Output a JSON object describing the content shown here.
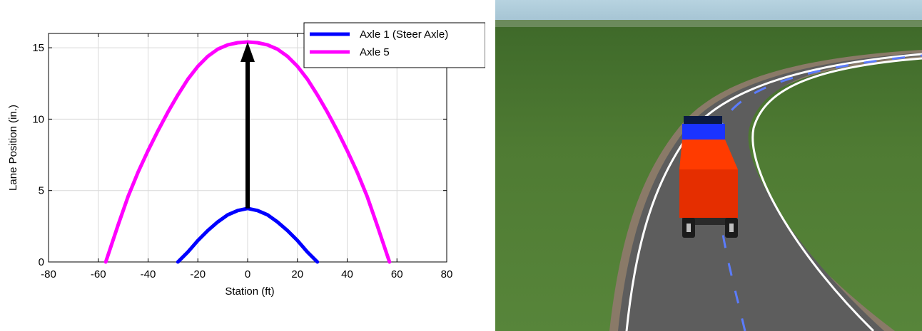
{
  "chart_data": {
    "type": "line",
    "title": "",
    "xlabel": "Station (ft)",
    "ylabel": "Lane Position (in.)",
    "xlim": [
      -80,
      80
    ],
    "ylim": [
      0,
      16
    ],
    "xticks": [
      -80,
      -60,
      -40,
      -20,
      0,
      20,
      40,
      60,
      80
    ],
    "yticks": [
      0,
      5,
      10,
      15
    ],
    "grid": true,
    "legend_position": "top-right",
    "series": [
      {
        "name": "Axle 1 (Steer Axle)",
        "color": "#0000ff",
        "x": [
          -28,
          -24,
          -20,
          -16,
          -12,
          -8,
          -4,
          0,
          4,
          8,
          12,
          16,
          20,
          24,
          28
        ],
        "y": [
          0.0,
          0.7,
          1.5,
          2.2,
          2.8,
          3.3,
          3.6,
          3.75,
          3.6,
          3.3,
          2.8,
          2.2,
          1.5,
          0.7,
          0.0
        ]
      },
      {
        "name": "Axle 5",
        "color": "#ff00ff",
        "x": [
          -57,
          -52,
          -48,
          -44,
          -40,
          -36,
          -32,
          -28,
          -24,
          -20,
          -16,
          -12,
          -8,
          -4,
          0,
          4,
          8,
          12,
          16,
          20,
          24,
          28,
          32,
          36,
          40,
          44,
          48,
          52,
          57
        ],
        "y": [
          0.0,
          2.6,
          4.6,
          6.3,
          7.8,
          9.2,
          10.5,
          11.7,
          12.8,
          13.7,
          14.4,
          14.9,
          15.2,
          15.35,
          15.4,
          15.35,
          15.2,
          14.9,
          14.4,
          13.7,
          12.8,
          11.7,
          10.5,
          9.2,
          7.8,
          6.3,
          4.6,
          2.6,
          0.0
        ]
      }
    ],
    "annotations": [
      {
        "type": "arrow",
        "color": "#000000",
        "from": [
          0,
          3.75
        ],
        "to": [
          0,
          15.4
        ]
      }
    ]
  },
  "scene": {
    "sky_color": "#a9c7d6",
    "grass_color": "#4f7a32",
    "road_color": "#5a5a5a",
    "edge_line_color": "#ffffff",
    "center_line_color": "#5b7cff",
    "cab_color": "#1a33ff",
    "trailer_color": "#ff3300"
  }
}
